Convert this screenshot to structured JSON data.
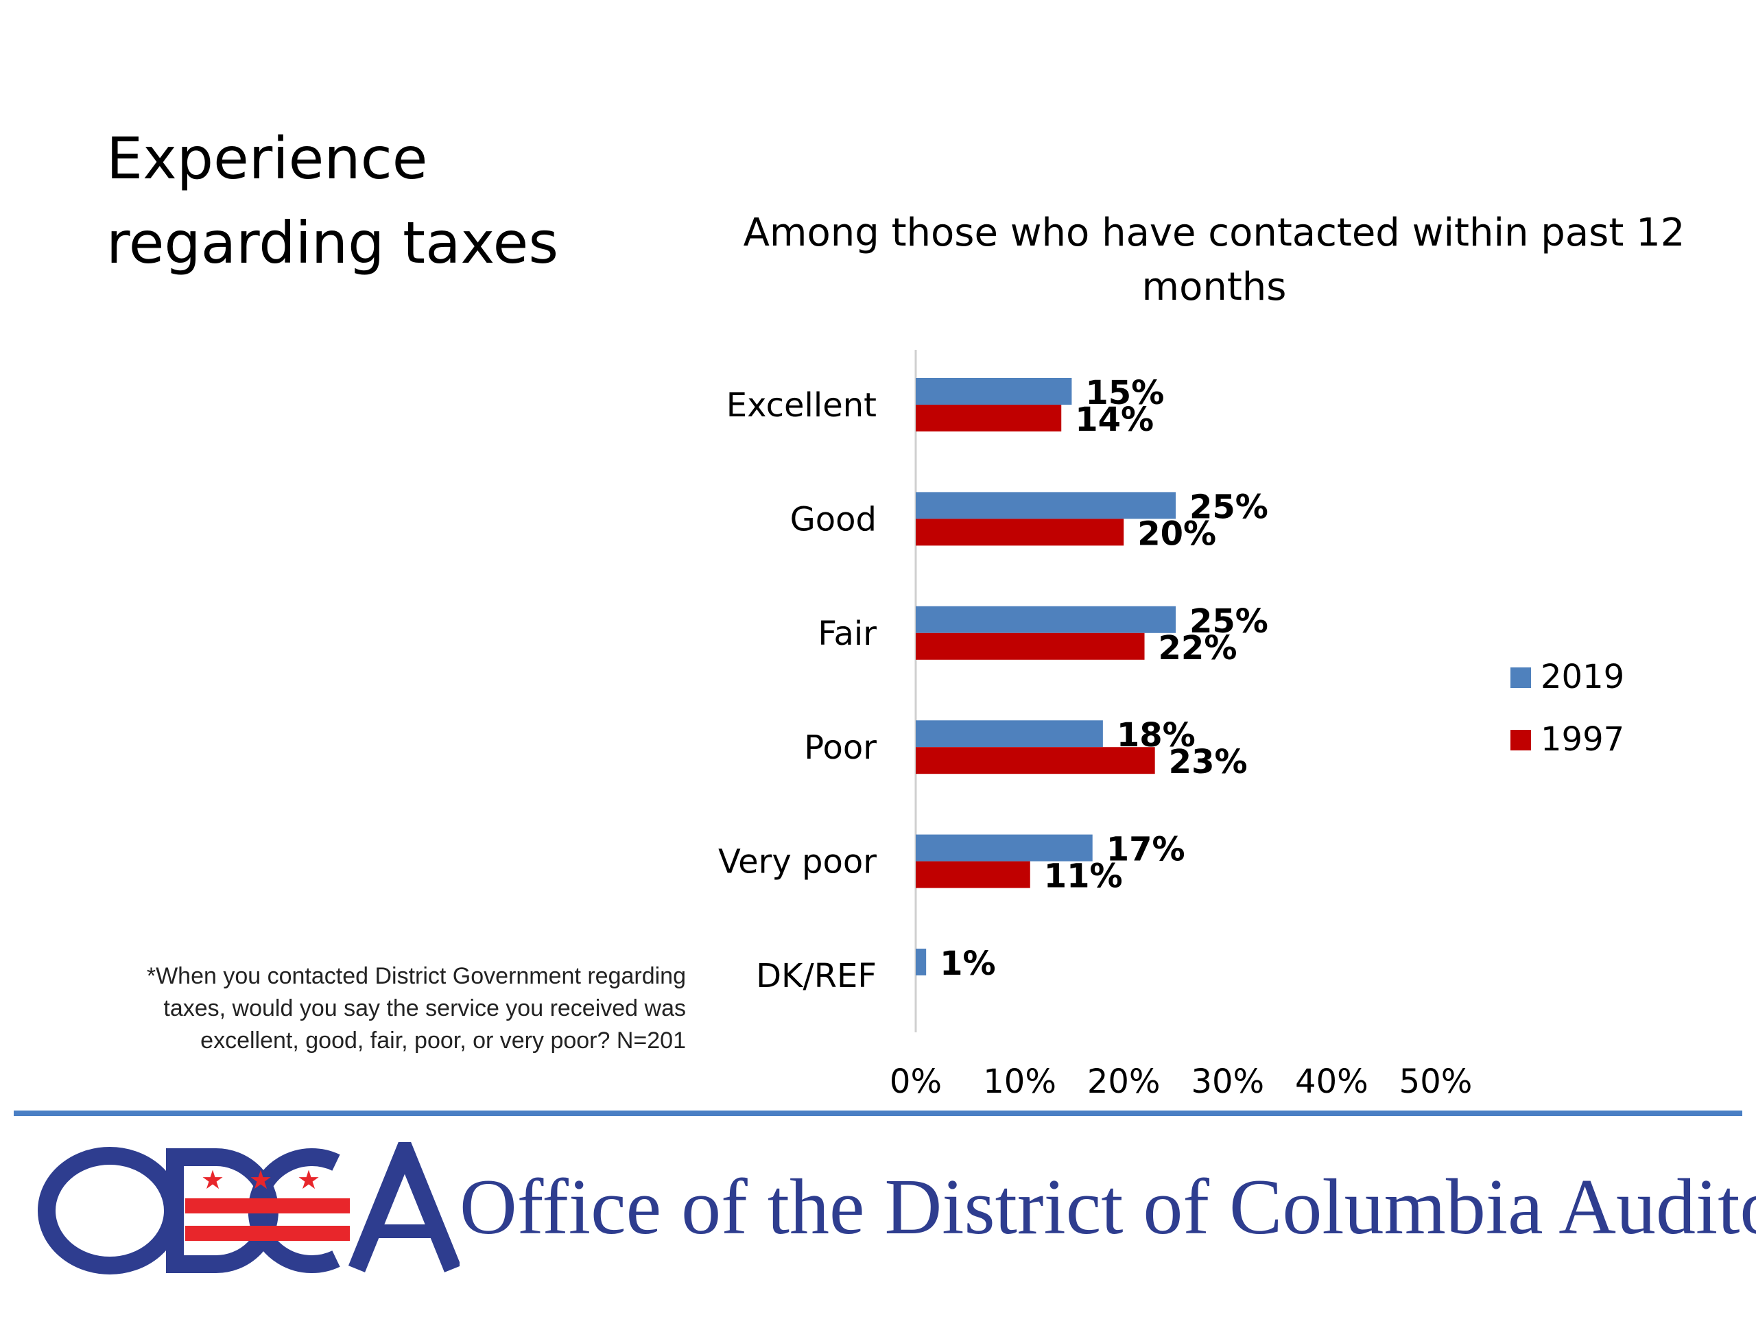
{
  "slide": {
    "title": "Experience regarding taxes",
    "footnote": "*When you contacted District Government regarding taxes, would you say the service you received was excellent, good, fair, poor, or very poor? N=201"
  },
  "footer": {
    "logo_name": "ODCA",
    "org_name": "Office of the District of Columbia Auditor"
  },
  "colors": {
    "series_2019": "#4f81bd",
    "series_1997": "#c00000",
    "divider": "#4a7fc4",
    "logo": "#2e3d8f",
    "logo_red": "#e8262b"
  },
  "chart_data": {
    "type": "bar",
    "orientation": "horizontal",
    "title": "Among those who have contacted within past 12 months",
    "categories": [
      "Excellent",
      "Good",
      "Fair",
      "Poor",
      "Very poor",
      "DK/REF"
    ],
    "series": [
      {
        "name": "2019",
        "color": "#4f81bd",
        "values": [
          15,
          25,
          25,
          18,
          17,
          1
        ],
        "labels": [
          "15%",
          "25%",
          "25%",
          "18%",
          "17%",
          "1%"
        ]
      },
      {
        "name": "1997",
        "color": "#c00000",
        "values": [
          14,
          20,
          22,
          23,
          11,
          null
        ],
        "labels": [
          "14%",
          "20%",
          "22%",
          "23%",
          "11%",
          null
        ]
      }
    ],
    "xlim": [
      0,
      50
    ],
    "xticks": [
      "0%",
      "10%",
      "20%",
      "30%",
      "40%",
      "50%"
    ],
    "grid": false,
    "legend": "right"
  }
}
